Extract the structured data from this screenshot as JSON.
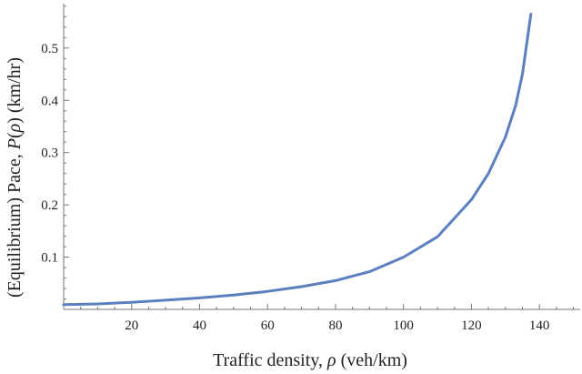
{
  "chart_data": {
    "type": "line",
    "xlabel_parts": [
      "Traffic density, ",
      "ρ",
      " (veh/km)"
    ],
    "ylabel_parts": [
      "(Equilibrium) Pace, ",
      "P",
      "(",
      "ρ",
      ")  (km/hr)"
    ],
    "xlim": [
      0,
      152
    ],
    "ylim": [
      0,
      0.585
    ],
    "x_ticks": [
      20,
      40,
      60,
      80,
      100,
      120,
      140
    ],
    "x_tick_labels": [
      "20",
      "40",
      "60",
      "80",
      "100",
      "120",
      "140"
    ],
    "x_minor_ticks": [
      5,
      10,
      15,
      25,
      30,
      35,
      45,
      50,
      55,
      65,
      70,
      75,
      85,
      90,
      95,
      105,
      110,
      115,
      125,
      130,
      135,
      145,
      150
    ],
    "y_ticks": [
      0.1,
      0.2,
      0.3,
      0.4,
      0.5
    ],
    "y_tick_labels": [
      "0.1",
      "0.2",
      "0.3",
      "0.4",
      "0.5"
    ],
    "y_minor_ticks": [
      0.02,
      0.04,
      0.06,
      0.08,
      0.12,
      0.14,
      0.16,
      0.18,
      0.22,
      0.24,
      0.26,
      0.28,
      0.32,
      0.34,
      0.36,
      0.38,
      0.42,
      0.44,
      0.46,
      0.48,
      0.52,
      0.54,
      0.56,
      0.58
    ],
    "grid": false,
    "series": [
      {
        "color": "#5b7fbf",
        "x": [
          0,
          10,
          20,
          30,
          40,
          50,
          60,
          70,
          80,
          90,
          100,
          110,
          120,
          125,
          130,
          133,
          135,
          137.5
        ],
        "y": [
          0.009,
          0.0105,
          0.0135,
          0.0175,
          0.022,
          0.0275,
          0.0345,
          0.0435,
          0.055,
          0.072,
          0.1,
          0.139,
          0.21,
          0.26,
          0.33,
          0.39,
          0.45,
          0.565
        ]
      }
    ]
  }
}
